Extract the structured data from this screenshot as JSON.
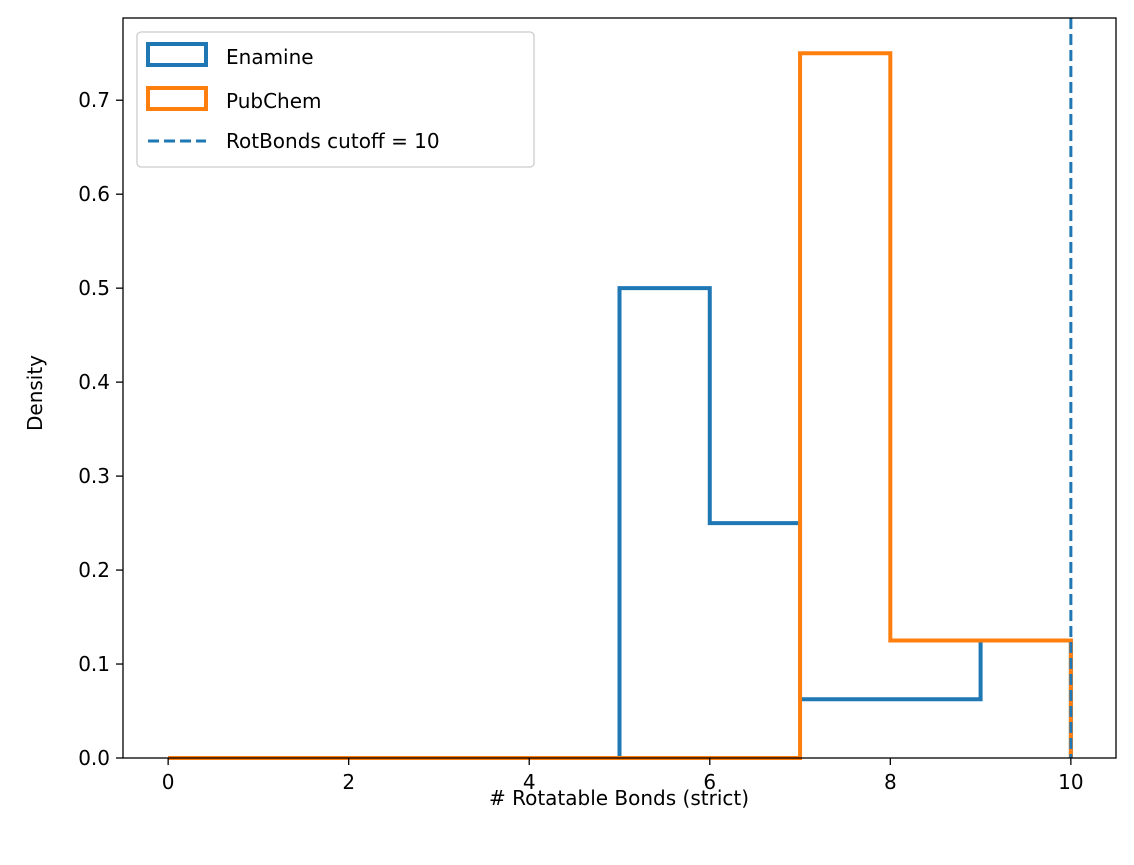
{
  "chart_data": {
    "type": "histogram-step",
    "xlabel": "# Rotatable Bonds (strict)",
    "ylabel": "Density",
    "xlim": [
      -0.5,
      10.5
    ],
    "ylim": [
      0,
      0.7875
    ],
    "x_ticks": [
      0,
      2,
      4,
      6,
      8,
      10
    ],
    "y_ticks": [
      0.0,
      0.1,
      0.2,
      0.3,
      0.4,
      0.5,
      0.6,
      0.7
    ],
    "x_tick_labels": [
      "0",
      "2",
      "4",
      "6",
      "8",
      "10"
    ],
    "y_tick_labels": [
      "0.0",
      "0.1",
      "0.2",
      "0.3",
      "0.4",
      "0.5",
      "0.6",
      "0.7"
    ],
    "bin_edges": [
      0,
      1,
      2,
      3,
      4,
      5,
      6,
      7,
      8,
      9,
      10
    ],
    "series": [
      {
        "name": "Enamine",
        "color": "#1f77b4",
        "values": [
          0,
          0,
          0,
          0,
          0,
          0.5,
          0.25,
          0.0625,
          0.0625,
          0.125
        ]
      },
      {
        "name": "PubChem",
        "color": "#ff7f0e",
        "values": [
          0,
          0,
          0,
          0,
          0,
          0,
          0,
          0.75,
          0.125,
          0.125
        ]
      }
    ],
    "cutoff": {
      "label": "RotBonds cutoff = 10",
      "x": 10,
      "color": "#1f77b4",
      "style": "dashed"
    },
    "legend_position": "top-left",
    "grid": false
  }
}
